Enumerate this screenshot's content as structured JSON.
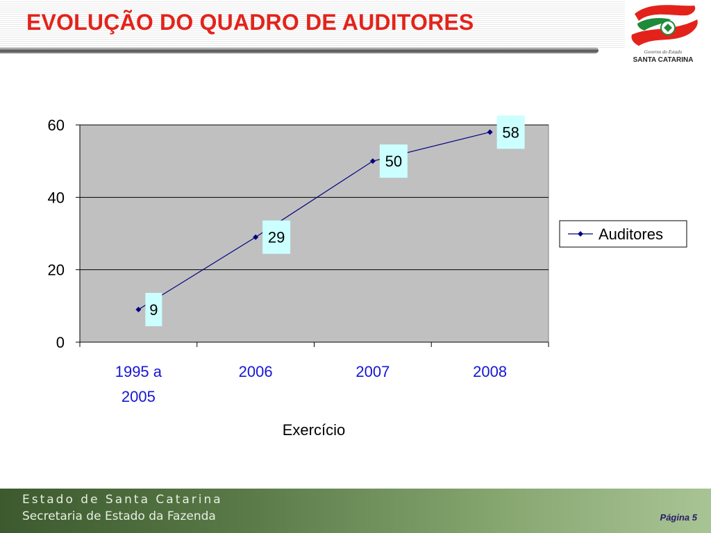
{
  "header": {
    "title": "EVOLUÇÃO DO QUADRO DE AUDITORES"
  },
  "logo": {
    "subtitle": "Governo do Estado",
    "name": "SANTA CATARINA"
  },
  "chart_data": {
    "type": "line",
    "categories": [
      "1995 a 2005",
      "2006",
      "2007",
      "2008"
    ],
    "series": [
      {
        "name": "Auditores",
        "values": [
          9,
          29,
          50,
          58
        ],
        "color": "#000080"
      }
    ],
    "title": "",
    "xlabel": "Exercício",
    "ylabel": "",
    "ylim": [
      0,
      60
    ],
    "yticks": [
      0,
      20,
      40,
      60
    ],
    "grid": true,
    "legend": "right",
    "plot_background": "#c0c0c0",
    "data_label_background": "#ccffff",
    "category_label_color": "#1515d6"
  },
  "footer": {
    "line1": "Estado de Santa Catarina",
    "line2": "Secretaria de Estado da Fazenda",
    "page": "Página 5"
  }
}
